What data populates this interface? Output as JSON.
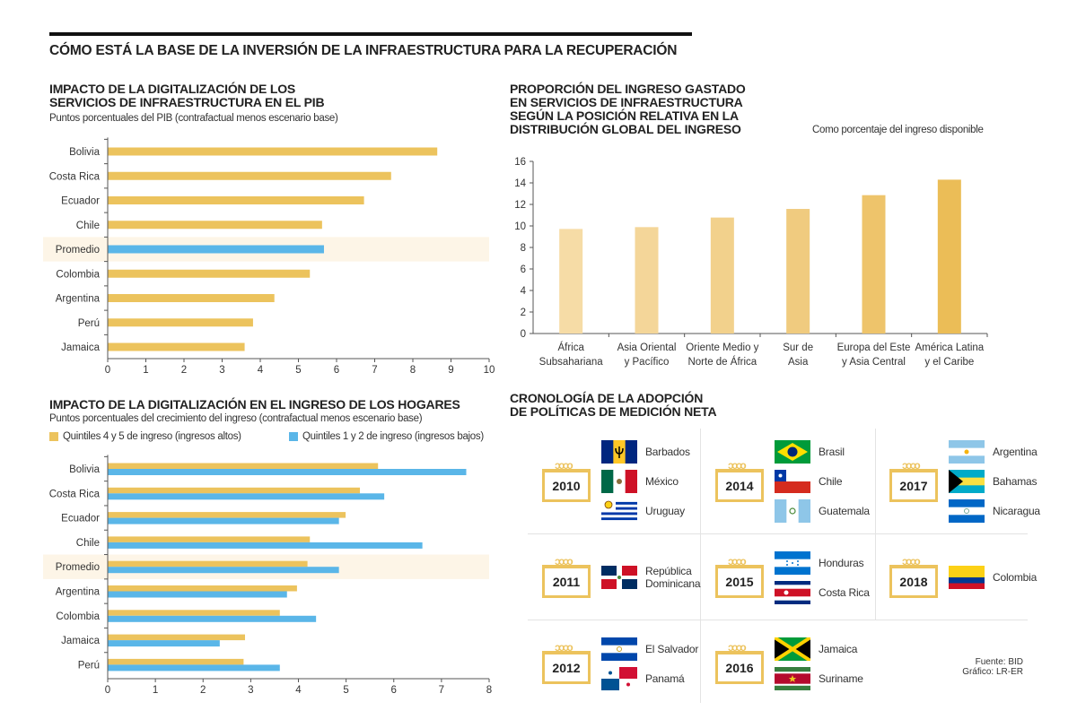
{
  "title": "CÓMO ESTÁ LA BASE DE LA INVERSIÓN DE LA INFRAESTRUCTURA PARA LA RECUPERACIÓN",
  "colors": {
    "gold": "#ecc35d",
    "blue": "#5ab6e8",
    "highlight": "#fdf5e7"
  },
  "chart_data": [
    {
      "type": "bar",
      "orientation": "horizontal",
      "title": "IMPACTO DE LA DIGITALIZACIÓN DE LOS SERVICIOS DE INFRAESTRUCTURA EN EL PIB",
      "subtitle": "Puntos porcentuales del PIB (contrafactual menos escenario base)",
      "categories": [
        "Bolivia",
        "Costa Rica",
        "Ecuador",
        "Chile",
        "Promedio",
        "Colombia",
        "Argentina",
        "Perú",
        "Jamaica"
      ],
      "values": [
        8.64,
        7.43,
        6.72,
        5.62,
        5.67,
        5.3,
        4.37,
        3.81,
        3.59
      ],
      "highlight": "Promedio",
      "xlim": [
        0,
        10
      ],
      "xticks": [
        0,
        1,
        2,
        3,
        4,
        5,
        6,
        7,
        8,
        9,
        10
      ]
    },
    {
      "type": "bar",
      "orientation": "horizontal",
      "title": "IMPACTO DE LA DIGITALIZACIÓN EN EL INGRESO DE LOS HOGARES",
      "subtitle": "Puntos porcentuales del crecimiento del ingreso (contrafactual menos escenario base)",
      "categories": [
        "Bolivia",
        "Costa Rica",
        "Ecuador",
        "Chile",
        "Promedio",
        "Argentina",
        "Colombia",
        "Jamaica",
        "Perú"
      ],
      "series": [
        {
          "name": "Quintiles 4 y 5 de ingreso (ingresos altos)",
          "values": [
            5.67,
            5.29,
            4.99,
            4.24,
            4.19,
            3.97,
            3.61,
            2.88,
            2.85
          ]
        },
        {
          "name": "Quintiles 1 y 2 de ingreso (ingresos bajos)",
          "values": [
            7.52,
            5.8,
            4.85,
            6.6,
            4.85,
            3.76,
            4.37,
            2.35,
            3.61
          ]
        }
      ],
      "highlight": "Promedio",
      "xlim": [
        0,
        8
      ],
      "xticks": [
        0,
        1,
        2,
        3,
        4,
        5,
        6,
        7,
        8
      ]
    },
    {
      "type": "bar",
      "orientation": "vertical",
      "title": "PROPORCIÓN DEL INGRESO GASTADO EN SERVICIOS DE INFRAESTRUCTURA SEGÚN LA POSICIÓN RELATIVA EN LA DISTRIBUCIÓN GLOBAL DEL INGRESO",
      "title_lines": [
        "PROPORCIÓN DEL INGRESO GASTADO",
        "EN SERVICIOS DE INFRAESTRUCTURA",
        "SEGÚN LA POSICIÓN RELATIVA EN LA",
        "DISTRIBUCIÓN GLOBAL DEL INGRESO"
      ],
      "subtitle": "Como porcentaje del ingreso disponible",
      "categories": [
        [
          "África",
          "Subsahariana"
        ],
        [
          "Asia Oriental",
          "y Pacífico"
        ],
        [
          "Oriente Medio y",
          "Norte de África"
        ],
        [
          "Sur de",
          "Asia"
        ],
        [
          "Europa del Este",
          "y Asia Central"
        ],
        [
          "América Latina",
          "y el Caribe"
        ]
      ],
      "values": [
        9.72,
        9.89,
        10.78,
        11.58,
        12.86,
        14.3
      ],
      "bar_colors": [
        "#f6dca6",
        "#f4d699",
        "#f2d18c",
        "#f0cb7f",
        "#eec46b",
        "#ebbd57"
      ],
      "ylim": [
        0,
        16
      ],
      "yticks": [
        0,
        2,
        4,
        6,
        8,
        10,
        12,
        14,
        16
      ]
    }
  ],
  "chart1_title_lines": [
    "IMPACTO DE LA DIGITALIZACIÓN DE LOS",
    "SERVICIOS DE INFRAESTRUCTURA EN EL PIB"
  ],
  "timeline": {
    "title_lines": [
      "CRONOLOGÍA DE LA ADOPCIÓN",
      "DE POLÍTICAS DE MEDICIÓN NETA"
    ],
    "cells": [
      {
        "year": "2010",
        "countries": [
          "Barbados",
          "México",
          "Uruguay"
        ]
      },
      {
        "year": "2014",
        "countries": [
          "Brasil",
          "Chile",
          "Guatemala"
        ]
      },
      {
        "year": "2017",
        "countries": [
          "Argentina",
          "Bahamas",
          "Nicaragua"
        ]
      },
      {
        "year": "2011",
        "countries": [
          "República Dominicana"
        ]
      },
      {
        "year": "2015",
        "countries": [
          "Honduras",
          "Costa Rica"
        ]
      },
      {
        "year": "2018",
        "countries": [
          "Colombia"
        ]
      },
      {
        "year": "2012",
        "countries": [
          "El Salvador",
          "Panamá"
        ]
      },
      {
        "year": "2016",
        "countries": [
          "Jamaica",
          "Suriname"
        ]
      }
    ]
  },
  "source": {
    "line1": "Fuente: BID",
    "line2": "Gráfico: LR-ER"
  }
}
